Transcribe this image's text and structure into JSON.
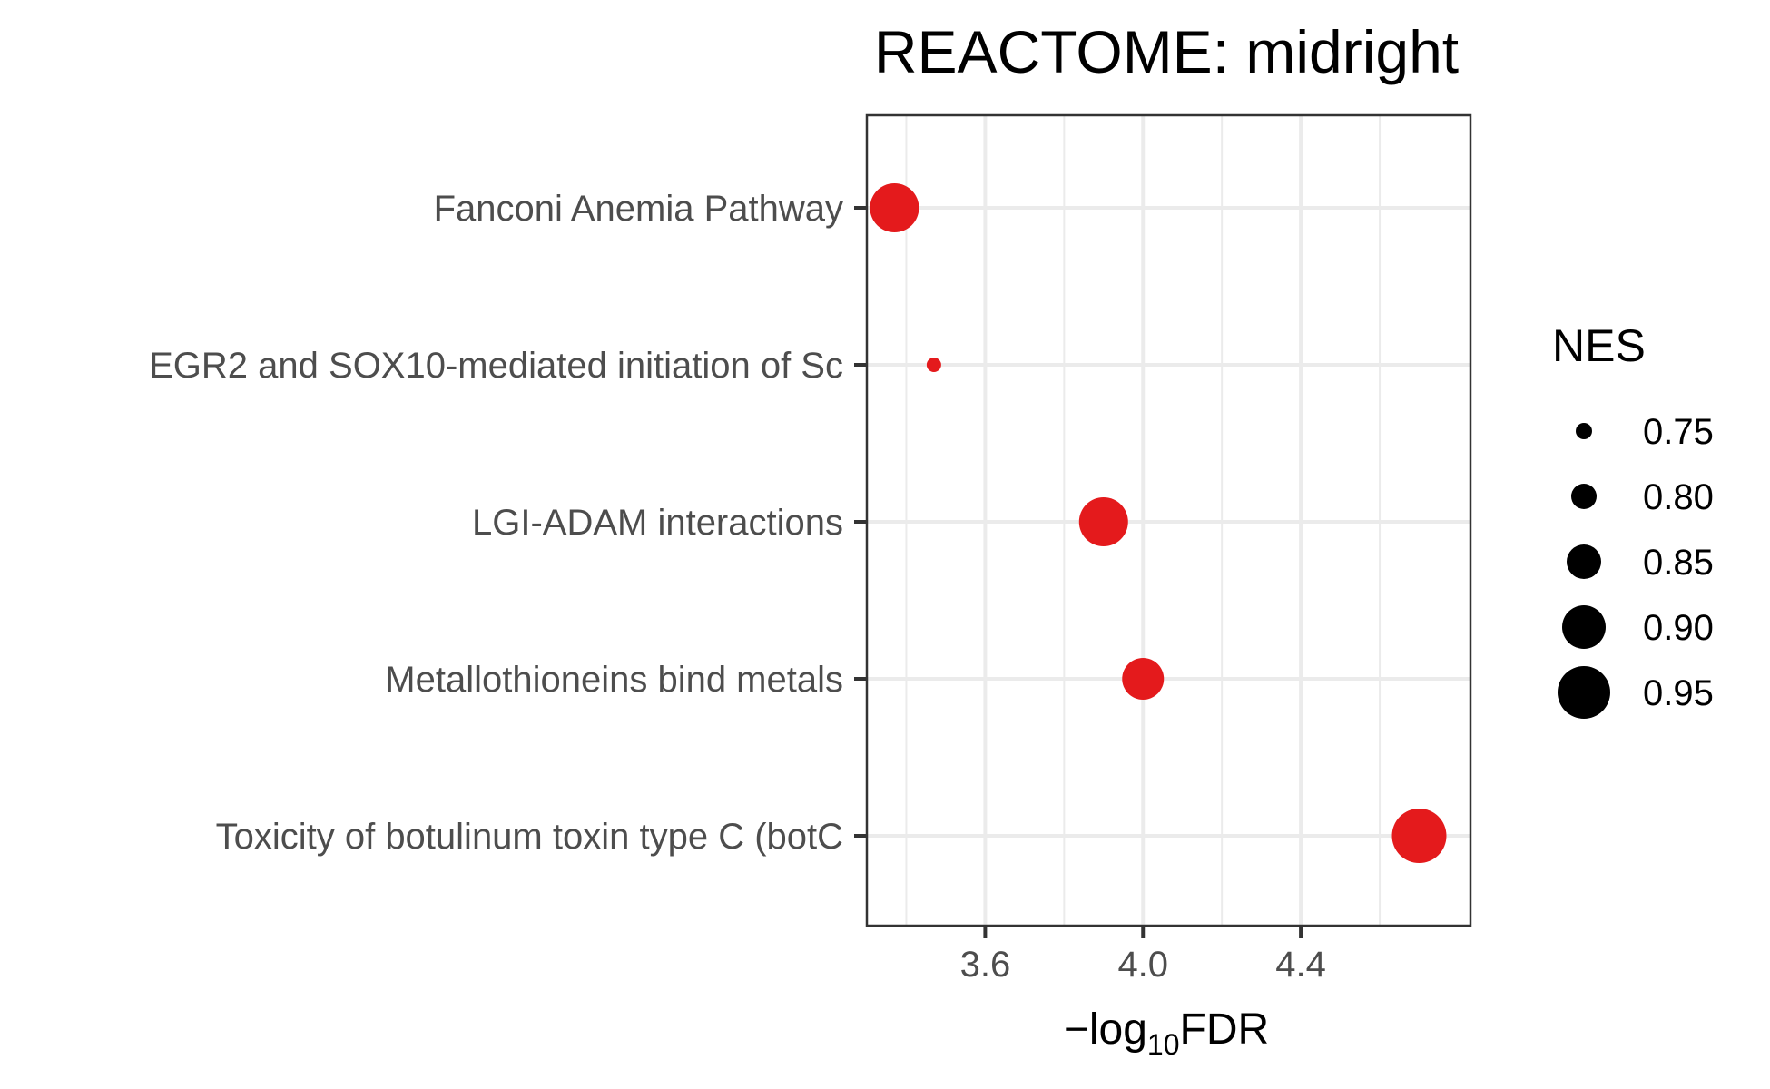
{
  "chart_data": {
    "type": "scatter",
    "title": "REACTOME: midright",
    "xlabel": {
      "prefix": "−log",
      "subscript": "10",
      "suffix": "FDR"
    },
    "ylabel": "",
    "xlim": [
      3.3,
      4.83
    ],
    "xticks": [
      3.6,
      4.0,
      4.4
    ],
    "xtick_labels": [
      "3.6",
      "4.0",
      "4.4"
    ],
    "x_minor_ticks": [
      3.4,
      3.8,
      4.2,
      4.6
    ],
    "grid": true,
    "color": "#e41a1c",
    "categories": [
      "Fanconi Anemia Pathway",
      "EGR2 and SOX10-mediated initiation of Sc",
      "LGI-ADAM interactions",
      "Metallothioneins bind metals",
      "Toxicity of botulinum toxin type C (botC"
    ],
    "points": [
      {
        "category": "Fanconi Anemia Pathway",
        "x": 3.37,
        "nes": 0.93
      },
      {
        "category": "EGR2 and SOX10-mediated initiation of Sc",
        "x": 3.47,
        "nes": 0.74
      },
      {
        "category": "LGI-ADAM interactions",
        "x": 3.9,
        "nes": 0.93
      },
      {
        "category": "Metallothioneins bind metals",
        "x": 4.0,
        "nes": 0.89
      },
      {
        "category": "Toxicity of botulinum toxin type C (botC",
        "x": 4.7,
        "nes": 0.96
      }
    ],
    "legend": {
      "title": "NES",
      "position": "right",
      "values": [
        0.75,
        0.8,
        0.85,
        0.9,
        0.95
      ],
      "labels": [
        "0.75",
        "0.80",
        "0.85",
        "0.90",
        "0.95"
      ],
      "color": "#000000"
    }
  }
}
